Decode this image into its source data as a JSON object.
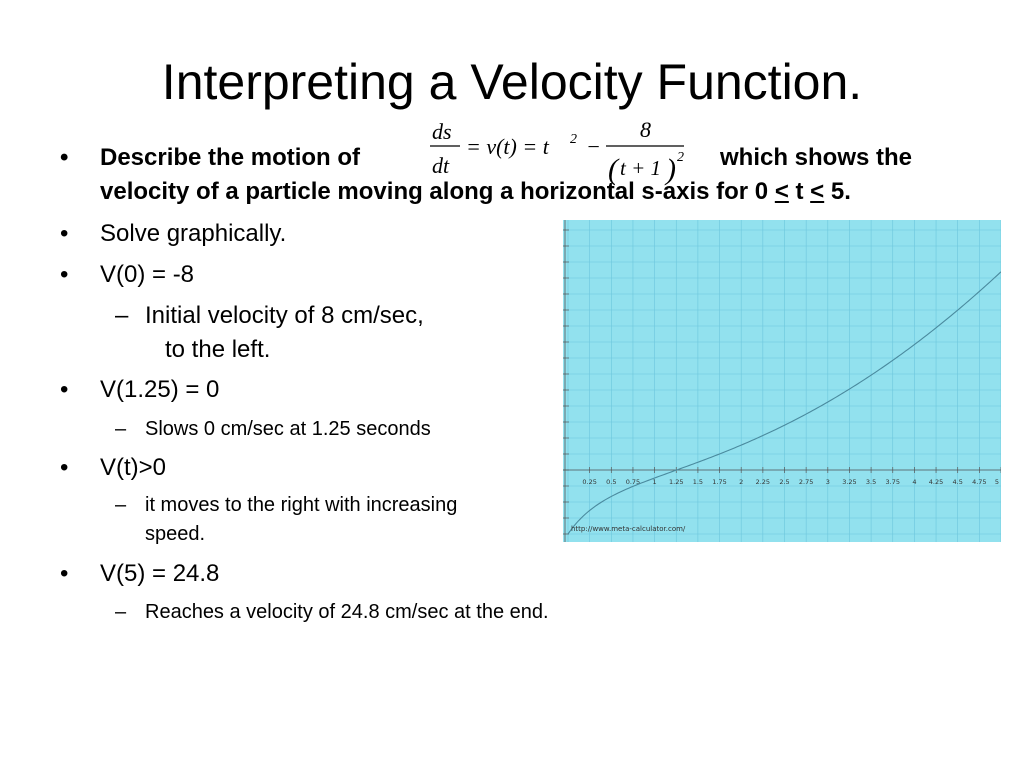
{
  "slide": {
    "title": "Interpreting a Velocity Function."
  },
  "bullets": {
    "b1": {
      "line1_start": "Describe the motion of",
      "line1_end": "which shows the",
      "line2_start": "velocity of a particle moving along a horizontal s-axis for  0 ",
      "lt1": "<",
      "mid": " t ",
      "lt2": "<",
      "line2_end": " 5."
    },
    "b2": "Solve graphically.",
    "b3": "V(0) = -8",
    "b3_sub_line1": "Initial velocity of 8 cm/sec,",
    "b3_sub_line2": "to the left.",
    "b4": "V(1.25) = 0",
    "b4_sub": "Slows 0 cm/sec at 1.25 seconds",
    "b5": "V(t)>0",
    "b5_sub_line1": "it moves to the right with increasing",
    "b5_sub_line2": "speed.",
    "b6": "V(5) = 24.8",
    "b6_sub": "Reaches a velocity of 24.8 cm/sec at the end.",
    "bullet_glyph": "•",
    "dash_glyph": "–"
  },
  "formula": {
    "ds": "ds",
    "dt": "dt",
    "rhs": "= v(t) = t",
    "exp2": "2",
    "minus": "−",
    "numerator": "8",
    "denominator": "t + 1",
    "paren_open": "(",
    "paren_close": ")"
  },
  "graph": {
    "background": "#92e1ee",
    "grid_color": "#6cc6dc",
    "curve_color": "#4a8a9e",
    "credit": "http://www.meta-calculator.com/",
    "x_ticks": [
      "0.25",
      "0.5",
      "0.75",
      "1",
      "1.25",
      "1.5",
      "1.75",
      "2",
      "2.25",
      "2.5",
      "2.75",
      "3",
      "3.25",
      "3.5",
      "3.75",
      "4",
      "4.25",
      "4.5",
      "4.75",
      "5"
    ]
  },
  "chart_data": {
    "type": "line",
    "function": "t^2 - 8/(t+1)^2",
    "x_domain": [
      0,
      5
    ],
    "x": [
      0,
      0.25,
      0.5,
      0.75,
      1,
      1.25,
      1.5,
      1.75,
      2,
      2.25,
      2.5,
      2.75,
      3,
      3.25,
      3.5,
      3.75,
      4,
      4.25,
      4.5,
      4.75,
      5
    ],
    "y": [
      -8,
      -5.06,
      -3.31,
      -2.05,
      -1,
      0,
      0.97,
      2.0,
      3.11,
      4.31,
      5.6,
      6.99,
      8.5,
      10.12,
      11.86,
      13.71,
      15.68,
      17.77,
      19.99,
      22.32,
      24.78
    ],
    "grid": true
  }
}
